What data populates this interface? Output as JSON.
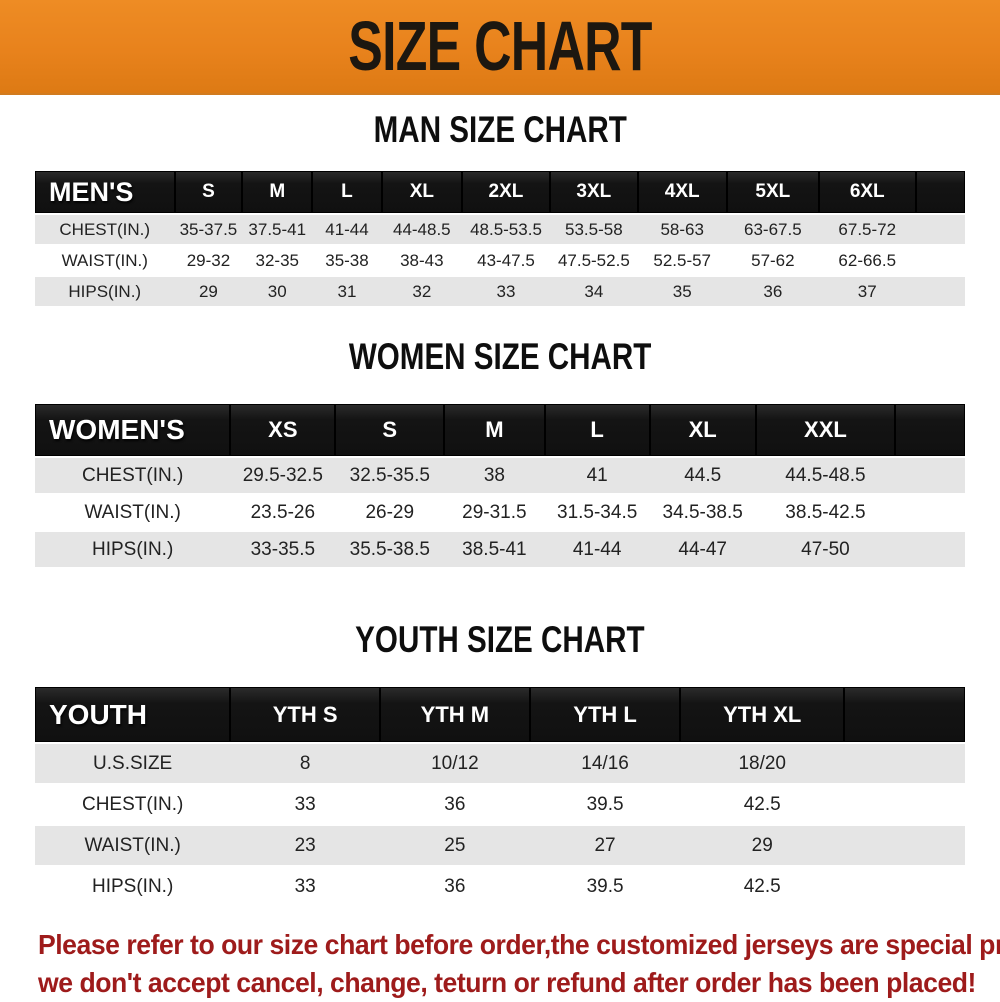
{
  "banner": {
    "title": "SIZE CHART"
  },
  "chart_data": [
    {
      "type": "table",
      "title": "MAN SIZE CHART",
      "header_label": "MEN'S",
      "columns": [
        "S",
        "M",
        "L",
        "XL",
        "2XL",
        "3XL",
        "4XL",
        "5XL",
        "6XL"
      ],
      "rows": [
        {
          "label": "CHEST(IN.)",
          "values": [
            "35-37.5",
            "37.5-41",
            "41-44",
            "44-48.5",
            "48.5-53.5",
            "53.5-58",
            "58-63",
            "63-67.5",
            "67.5-72"
          ]
        },
        {
          "label": "WAIST(IN.)",
          "values": [
            "29-32",
            "32-35",
            "35-38",
            "38-43",
            "43-47.5",
            "47.5-52.5",
            "52.5-57",
            "57-62",
            "62-66.5"
          ]
        },
        {
          "label": "HIPS(IN.)",
          "values": [
            "29",
            "30",
            "31",
            "32",
            "33",
            "34",
            "35",
            "36",
            "37"
          ]
        }
      ]
    },
    {
      "type": "table",
      "title": "WOMEN SIZE CHART",
      "header_label": "WOMEN'S",
      "columns": [
        "XS",
        "S",
        "M",
        "L",
        "XL",
        "XXL"
      ],
      "rows": [
        {
          "label": "CHEST(IN.)",
          "values": [
            "29.5-32.5",
            "32.5-35.5",
            "38",
            "41",
            "44.5",
            "44.5-48.5"
          ]
        },
        {
          "label": "WAIST(IN.)",
          "values": [
            "23.5-26",
            "26-29",
            "29-31.5",
            "31.5-34.5",
            "34.5-38.5",
            "38.5-42.5"
          ]
        },
        {
          "label": "HIPS(IN.)",
          "values": [
            "33-35.5",
            "35.5-38.5",
            "38.5-41",
            "41-44",
            "44-47",
            "47-50"
          ]
        }
      ]
    },
    {
      "type": "table",
      "title": "YOUTH SIZE CHART",
      "header_label": "YOUTH",
      "columns": [
        "YTH S",
        "YTH M",
        "YTH L",
        "YTH XL"
      ],
      "rows": [
        {
          "label": "U.S.SIZE",
          "values": [
            "8",
            "10/12",
            "14/16",
            "18/20"
          ]
        },
        {
          "label": "CHEST(IN.)",
          "values": [
            "33",
            "36",
            "39.5",
            "42.5"
          ]
        },
        {
          "label": "WAIST(IN.)",
          "values": [
            "23",
            "25",
            "27",
            "29"
          ]
        },
        {
          "label": "HIPS(IN.)",
          "values": [
            "33",
            "36",
            "39.5",
            "42.5"
          ]
        }
      ]
    }
  ],
  "footer": {
    "line1": "Please refer to our size chart before order,the customized jerseys are special products,",
    "line2": "we don't accept cancel, change, teturn or refund after order has been placed!"
  },
  "colors": {
    "banner_bg": "#E8821C",
    "banner_text": "#1C1710",
    "header_row_bg": "#141414",
    "header_row_text": "#FFFFFF",
    "alt_row_bg": "#E5E5E5",
    "body_text": "#222222",
    "footer_text": "#9E1B1B"
  }
}
